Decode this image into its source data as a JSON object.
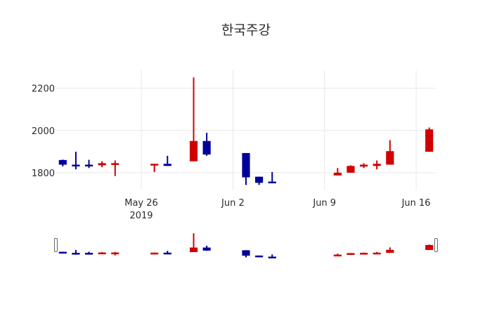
{
  "chart_data": {
    "type": "candlestick",
    "title": "한국주강",
    "xlabel": "",
    "ylabel": "",
    "ylim": [
      1720,
      2285
    ],
    "yticks": [
      1800,
      2000,
      2200
    ],
    "xticks": [
      {
        "date": "2019-05-26",
        "label": "May 26",
        "sublabel": "2019"
      },
      {
        "date": "2019-06-02",
        "label": "Jun 2",
        "sublabel": ""
      },
      {
        "date": "2019-06-09",
        "label": "Jun 9",
        "sublabel": ""
      },
      {
        "date": "2019-06-16",
        "label": "Jun 16",
        "sublabel": ""
      }
    ],
    "xrange": [
      "2019-05-19T12:00",
      "2019-06-17T12:00"
    ],
    "grid": true,
    "increasing_color": "#d10000",
    "decreasing_color": "#00009b",
    "rangeslider": true,
    "x": [
      "2019-05-20",
      "2019-05-21",
      "2019-05-22",
      "2019-05-23",
      "2019-05-24",
      "2019-05-27",
      "2019-05-28",
      "2019-05-30",
      "2019-05-31",
      "2019-06-03",
      "2019-06-04",
      "2019-06-05",
      "2019-06-10",
      "2019-06-11",
      "2019-06-12",
      "2019-06-13",
      "2019-06-14",
      "2019-06-17"
    ],
    "open": [
      1860,
      1838,
      1838,
      1835,
      1838,
      1835,
      1842,
      1854,
      1950,
      1893,
      1781,
      1758,
      1787,
      1800,
      1829,
      1832,
      1838,
      1899
    ],
    "high": [
      1862,
      1899,
      1861,
      1854,
      1858,
      1842,
      1880,
      2251,
      1989,
      1893,
      1781,
      1803,
      1822,
      1835,
      1845,
      1858,
      1954,
      2014
    ],
    "low": [
      1830,
      1816,
      1822,
      1826,
      1784,
      1803,
      1832,
      1854,
      1880,
      1742,
      1742,
      1752,
      1787,
      1800,
      1822,
      1816,
      1838,
      1899
    ],
    "close": [
      1838,
      1832,
      1832,
      1845,
      1845,
      1842,
      1832,
      1950,
      1886,
      1778,
      1752,
      1752,
      1800,
      1832,
      1838,
      1842,
      1902,
      2005
    ]
  },
  "title": "한국주강"
}
